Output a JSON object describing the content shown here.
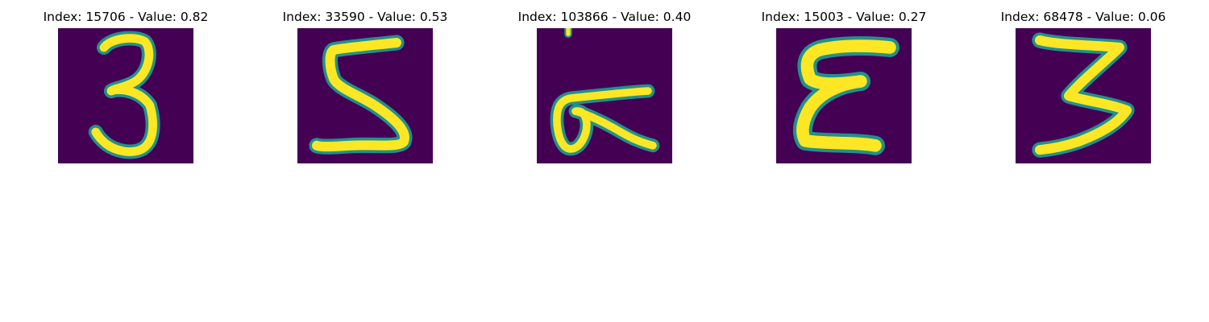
{
  "panels": [
    {
      "title": "Index: 15706 - Value: 0.82",
      "image_icon": "handwritten-digit-3",
      "background": "#440154",
      "stroke_color": "#fde725",
      "edge_color": "#21918c"
    },
    {
      "title": "Index: 33590 - Value: 0.53",
      "image_icon": "handwritten-digit-5",
      "background": "#440154",
      "stroke_color": "#fde725",
      "edge_color": "#21918c"
    },
    {
      "title": "Index: 103866 - Value: 0.40",
      "image_icon": "handwritten-digit-6",
      "background": "#440154",
      "stroke_color": "#fde725",
      "edge_color": "#21918c"
    },
    {
      "title": "Index: 15003 - Value: 0.27",
      "image_icon": "handwritten-digit-3",
      "background": "#440154",
      "stroke_color": "#fde725",
      "edge_color": "#21918c"
    },
    {
      "title": "Index: 68478 - Value: 0.06",
      "image_icon": "handwritten-digit-3",
      "background": "#440154",
      "stroke_color": "#fde725",
      "edge_color": "#21918c"
    }
  ]
}
